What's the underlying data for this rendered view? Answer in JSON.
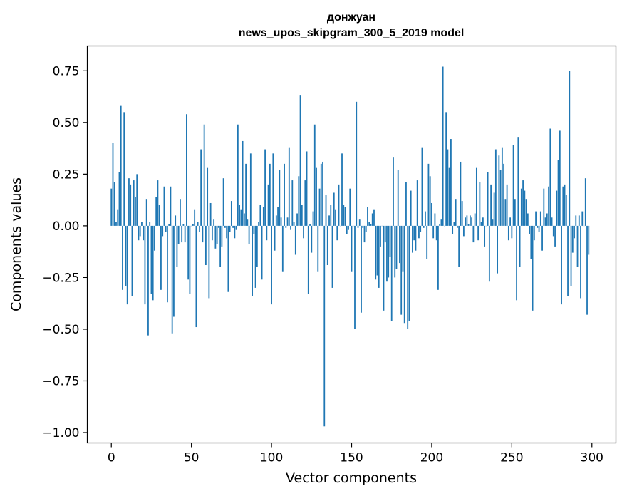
{
  "chart_data": {
    "type": "bar",
    "title": "донжуан",
    "subtitle": "news_upos_skipgram_300_5_2019 model",
    "xlabel": "Vector components",
    "ylabel": "Components values",
    "xlim": [
      -15,
      315
    ],
    "ylim": [
      -1.05,
      0.87
    ],
    "xticks": [
      0,
      50,
      100,
      150,
      200,
      250,
      300
    ],
    "yticks": [
      -1.0,
      -0.75,
      -0.5,
      -0.25,
      0.0,
      0.25,
      0.5,
      0.75
    ],
    "ytick_labels": [
      "−1.00",
      "−0.75",
      "−0.50",
      "−0.25",
      "0.00",
      "0.25",
      "0.50",
      "0.75"
    ],
    "bar_color": "#1f77b4",
    "grid": false,
    "values": [
      0.18,
      0.4,
      0.21,
      0.02,
      0.08,
      0.26,
      0.58,
      -0.31,
      0.55,
      -0.29,
      -0.38,
      0.23,
      0.2,
      -0.34,
      0.22,
      0.14,
      0.25,
      -0.07,
      -0.05,
      0.02,
      -0.07,
      -0.38,
      0.13,
      -0.53,
      0.02,
      -0.33,
      -0.36,
      -0.12,
      0.14,
      0.22,
      0.1,
      -0.31,
      -0.05,
      0.19,
      -0.03,
      -0.37,
      0.01,
      0.19,
      -0.52,
      -0.44,
      0.05,
      -0.2,
      -0.09,
      0.13,
      -0.08,
      0.01,
      -0.08,
      0.54,
      -0.26,
      -0.33,
      0.0,
      0.01,
      0.08,
      -0.49,
      0.02,
      -0.03,
      0.37,
      -0.08,
      0.49,
      -0.19,
      0.28,
      -0.35,
      0.11,
      -0.07,
      0.03,
      -0.11,
      -0.09,
      -0.01,
      -0.2,
      -0.1,
      0.23,
      -0.01,
      -0.06,
      -0.32,
      -0.03,
      0.12,
      -0.01,
      -0.06,
      -0.02,
      0.49,
      0.1,
      0.08,
      0.41,
      0.06,
      0.3,
      0.03,
      -0.09,
      0.35,
      -0.34,
      -0.04,
      -0.3,
      -0.2,
      0.02,
      0.1,
      -0.26,
      0.09,
      0.37,
      -0.07,
      0.2,
      0.3,
      -0.38,
      0.35,
      -0.12,
      0.05,
      0.09,
      0.27,
      0.04,
      -0.22,
      0.3,
      -0.01,
      0.04,
      0.38,
      -0.02,
      0.22,
      0.02,
      -0.14,
      0.06,
      0.24,
      0.63,
      0.1,
      -0.06,
      0.22,
      0.36,
      -0.33,
      0.01,
      -0.13,
      0.07,
      0.49,
      0.28,
      -0.22,
      0.18,
      0.3,
      0.31,
      -0.97,
      0.15,
      -0.19,
      0.05,
      0.1,
      -0.3,
      0.16,
      0.08,
      -0.07,
      0.2,
      0.0,
      0.35,
      0.1,
      0.09,
      -0.04,
      -0.02,
      0.18,
      -0.22,
      0.0,
      -0.5,
      0.6,
      -0.01,
      0.03,
      -0.42,
      -0.01,
      -0.08,
      -0.03,
      0.09,
      0.02,
      0.01,
      0.06,
      0.08,
      -0.26,
      -0.24,
      -0.3,
      -0.1,
      0.0,
      -0.41,
      -0.08,
      -0.27,
      -0.25,
      -0.15,
      -0.46,
      0.33,
      -0.25,
      -0.21,
      0.27,
      -0.18,
      -0.43,
      -0.22,
      -0.47,
      0.21,
      -0.5,
      -0.46,
      0.17,
      -0.13,
      -0.07,
      -0.12,
      0.22,
      -0.06,
      -0.03,
      0.38,
      -0.01,
      0.07,
      -0.16,
      0.3,
      0.24,
      0.11,
      -0.06,
      0.06,
      -0.07,
      -0.31,
      0.01,
      0.03,
      0.77,
      0.0,
      0.55,
      0.37,
      0.28,
      0.42,
      -0.04,
      0.02,
      0.13,
      -0.01,
      -0.2,
      0.31,
      0.12,
      -0.05,
      0.04,
      0.05,
      0.01,
      0.05,
      0.04,
      -0.08,
      0.06,
      0.28,
      -0.07,
      0.21,
      0.02,
      0.04,
      -0.1,
      0.0,
      0.26,
      -0.27,
      0.2,
      0.03,
      0.16,
      0.37,
      -0.23,
      0.34,
      0.27,
      0.38,
      0.3,
      0.13,
      0.2,
      -0.07,
      0.04,
      -0.06,
      0.39,
      0.13,
      -0.36,
      0.43,
      -0.2,
      0.18,
      0.22,
      0.17,
      0.13,
      0.06,
      -0.04,
      -0.16,
      -0.41,
      -0.07,
      0.07,
      -0.01,
      -0.03,
      0.07,
      -0.12,
      0.18,
      0.04,
      0.06,
      0.19,
      0.47,
      0.04,
      -0.05,
      -0.1,
      0.17,
      0.32,
      0.46,
      -0.38,
      0.19,
      0.2,
      0.15,
      -0.34,
      0.75,
      -0.29,
      -0.13,
      -0.06,
      0.05,
      -0.2,
      0.05,
      -0.35,
      0.07,
      0.0,
      0.23,
      -0.43,
      -0.14
    ]
  }
}
